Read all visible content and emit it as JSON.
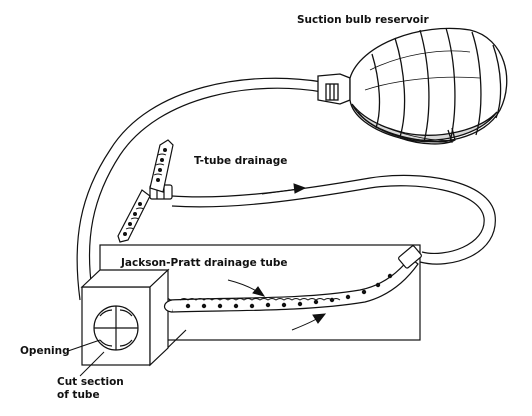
{
  "labels": {
    "suction_bulb": "Suction bulb reservoir",
    "t_tube": "T-tube drainage",
    "jackson_pratt": "Jackson-Pratt drainage tube",
    "opening": "Opening",
    "cut_section_line1": "Cut section",
    "cut_section_line2": "of tube"
  },
  "colors": {
    "ink": "#111111",
    "background": "#ffffff",
    "bulb_shade": "#d8d8d8"
  }
}
